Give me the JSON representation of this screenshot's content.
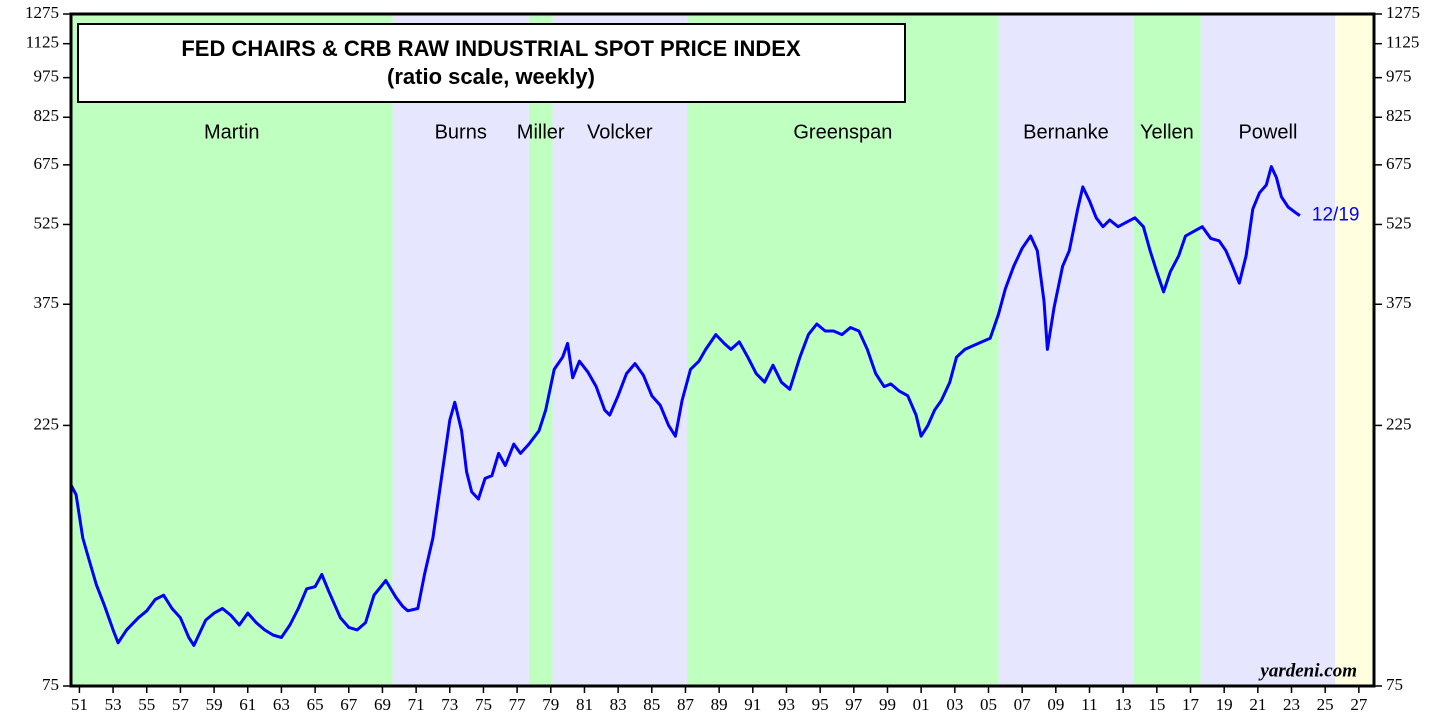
{
  "chart_data": {
    "type": "line",
    "title": "FED CHAIRS & CRB RAW INDUSTRIAL SPOT PRICE INDEX",
    "subtitle": "(ratio scale, weekly)",
    "annotation": "12/19",
    "source": "yardeni.com",
    "color": "#0000ff",
    "log_scale": true,
    "xlim": [
      1951,
      2028.4
    ],
    "ylim": [
      75,
      1275
    ],
    "yticks": [
      75,
      225,
      375,
      525,
      675,
      825,
      975,
      1125,
      1275
    ],
    "xticks": [
      {
        "value": 1951.5,
        "label": "51"
      },
      {
        "value": 1953.5,
        "label": "53"
      },
      {
        "value": 1955.5,
        "label": "55"
      },
      {
        "value": 1957.5,
        "label": "57"
      },
      {
        "value": 1959.5,
        "label": "59"
      },
      {
        "value": 1961.5,
        "label": "61"
      },
      {
        "value": 1963.5,
        "label": "63"
      },
      {
        "value": 1965.5,
        "label": "65"
      },
      {
        "value": 1967.5,
        "label": "67"
      },
      {
        "value": 1969.5,
        "label": "69"
      },
      {
        "value": 1971.5,
        "label": "71"
      },
      {
        "value": 1973.5,
        "label": "73"
      },
      {
        "value": 1975.5,
        "label": "75"
      },
      {
        "value": 1977.5,
        "label": "77"
      },
      {
        "value": 1979.5,
        "label": "79"
      },
      {
        "value": 1981.5,
        "label": "81"
      },
      {
        "value": 1983.5,
        "label": "83"
      },
      {
        "value": 1985.5,
        "label": "85"
      },
      {
        "value": 1987.5,
        "label": "87"
      },
      {
        "value": 1989.5,
        "label": "89"
      },
      {
        "value": 1991.5,
        "label": "91"
      },
      {
        "value": 1993.5,
        "label": "93"
      },
      {
        "value": 1995.5,
        "label": "95"
      },
      {
        "value": 1997.5,
        "label": "97"
      },
      {
        "value": 1999.5,
        "label": "99"
      },
      {
        "value": 2001.5,
        "label": "01"
      },
      {
        "value": 2003.5,
        "label": "03"
      },
      {
        "value": 2005.5,
        "label": "05"
      },
      {
        "value": 2007.5,
        "label": "07"
      },
      {
        "value": 2009.5,
        "label": "09"
      },
      {
        "value": 2011.5,
        "label": "11"
      },
      {
        "value": 2013.5,
        "label": "13"
      },
      {
        "value": 2015.5,
        "label": "15"
      },
      {
        "value": 2017.5,
        "label": "17"
      },
      {
        "value": 2019.5,
        "label": "19"
      },
      {
        "value": 2021.5,
        "label": "21"
      },
      {
        "value": 2023.5,
        "label": "23"
      },
      {
        "value": 2025.5,
        "label": "25"
      },
      {
        "value": 2027.5,
        "label": "27"
      }
    ],
    "regions": [
      {
        "name": "Martin",
        "start": 1951,
        "end": 1970.1,
        "color": "#bfffbf"
      },
      {
        "name": "Burns",
        "start": 1970.1,
        "end": 1978.2,
        "color": "#e6e6ff"
      },
      {
        "name": "Miller",
        "start": 1978.2,
        "end": 1979.6,
        "color": "#bfffbf"
      },
      {
        "name": "Volcker",
        "start": 1979.6,
        "end": 1987.6,
        "color": "#e6e6ff"
      },
      {
        "name": "Greenspan",
        "start": 1987.6,
        "end": 2006.1,
        "color": "#bfffbf"
      },
      {
        "name": "Bernanke",
        "start": 2006.1,
        "end": 2014.1,
        "color": "#e6e6ff"
      },
      {
        "name": "Yellen",
        "start": 2014.1,
        "end": 2018.1,
        "color": "#bfffbf"
      },
      {
        "name": "Powell",
        "start": 2018.1,
        "end": 2026.1,
        "color": "#e6e6ff"
      },
      {
        "start": 2026.1,
        "end": 2028.4,
        "color": "#ffffe0"
      }
    ],
    "x": [
      1951.0,
      1951.3,
      1951.7,
      1952.0,
      1952.5,
      1953.0,
      1953.5,
      1953.8,
      1954.3,
      1955,
      1955.5,
      1956,
      1956.5,
      1957,
      1957.5,
      1958,
      1958.3,
      1959,
      1959.5,
      1960,
      1960.5,
      1961,
      1961.5,
      1962,
      1962.5,
      1963,
      1963.5,
      1964,
      1964.5,
      1965,
      1965.5,
      1965.9,
      1966.3,
      1967,
      1967.5,
      1968,
      1968.5,
      1969,
      1969.7,
      1970.3,
      1970.7,
      1971,
      1971.6,
      1972,
      1972.5,
      1973,
      1973.5,
      1973.8,
      1974.2,
      1974.5,
      1974.8,
      1975.2,
      1975.6,
      1976,
      1976.4,
      1976.8,
      1977.3,
      1977.7,
      1978.2,
      1978.8,
      1979.2,
      1979.7,
      1980.2,
      1980.5,
      1980.8,
      1981.2,
      1981.7,
      1982.2,
      1982.7,
      1983,
      1983.5,
      1984,
      1984.5,
      1985,
      1985.5,
      1986,
      1986.5,
      1986.9,
      1987.3,
      1987.8,
      1988.3,
      1988.7,
      1989.3,
      1989.8,
      1990.2,
      1990.7,
      1991.2,
      1991.7,
      1992.2,
      1992.7,
      1993.2,
      1993.7,
      1994.3,
      1994.8,
      1995.3,
      1995.8,
      1996.3,
      1996.8,
      1997.3,
      1997.8,
      1998.3,
      1998.8,
      1999.3,
      1999.7,
      2000.2,
      2000.7,
      2001.2,
      2001.5,
      2001.9,
      2002.3,
      2002.7,
      2003.2,
      2003.6,
      2004.1,
      2004.6,
      2005.1,
      2005.6,
      2006.1,
      2006.5,
      2007,
      2007.5,
      2008,
      2008.4,
      2008.8,
      2009.0,
      2009.4,
      2009.9,
      2010.3,
      2010.8,
      2011.1,
      2011.5,
      2011.9,
      2012.3,
      2012.7,
      2013.2,
      2013.7,
      2014.2,
      2014.7,
      2015.1,
      2015.5,
      2015.9,
      2016.3,
      2016.8,
      2017.2,
      2017.7,
      2018.2,
      2018.7,
      2019.2,
      2019.6,
      2020.0,
      2020.4,
      2020.8,
      2021.2,
      2021.6,
      2022.0,
      2022.3,
      2022.6,
      2022.9,
      2023.3,
      2023.8,
      2024.0
    ],
    "values": [
      175,
      168,
      140,
      130,
      115,
      105,
      95,
      90,
      95,
      100,
      103,
      108,
      110,
      104,
      100,
      92,
      89,
      99,
      102,
      104,
      101,
      97,
      102,
      98,
      95,
      93,
      92,
      97,
      104,
      113,
      114,
      120,
      112,
      100,
      96,
      95,
      98,
      110,
      117,
      109,
      105,
      103,
      104,
      120,
      140,
      180,
      230,
      248,
      220,
      185,
      170,
      165,
      180,
      182,
      200,
      190,
      208,
      200,
      208,
      220,
      240,
      285,
      300,
      318,
      275,
      295,
      282,
      265,
      240,
      235,
      255,
      280,
      292,
      278,
      255,
      245,
      225,
      215,
      250,
      285,
      295,
      310,
      330,
      318,
      310,
      320,
      300,
      280,
      270,
      290,
      270,
      262,
      300,
      330,
      345,
      335,
      335,
      330,
      340,
      335,
      310,
      280,
      265,
      268,
      260,
      255,
      235,
      215,
      225,
      240,
      250,
      270,
      300,
      310,
      315,
      320,
      325,
      360,
      400,
      440,
      475,
      500,
      470,
      380,
      310,
      370,
      440,
      470,
      560,
      615,
      580,
      540,
      520,
      535,
      520,
      530,
      540,
      520,
      470,
      430,
      395,
      430,
      460,
      500,
      510,
      520,
      495,
      490,
      470,
      440,
      410,
      460,
      560,
      600,
      620,
      670,
      640,
      590,
      565,
      550,
      545
    ]
  }
}
